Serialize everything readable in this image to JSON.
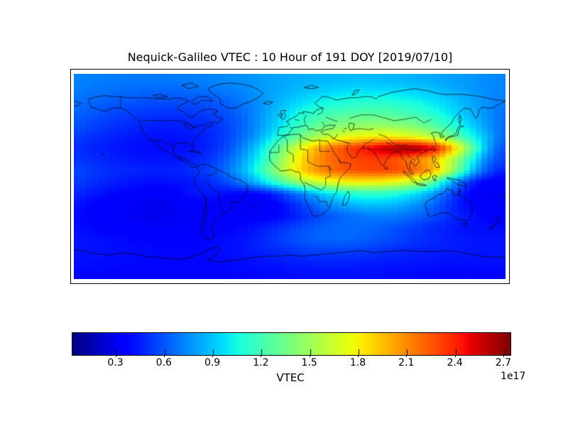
{
  "chart_data": {
    "type": "heatmap",
    "title": "Nequick-Galileo VTEC : 10 Hour of 191 DOY [2019/07/10]",
    "projection": "equirectangular",
    "lon_range": [
      -180,
      180
    ],
    "lat_range": [
      -90,
      90
    ],
    "colormap": "jet",
    "colorbar": {
      "label": "VTEC",
      "offset_label": "1e17",
      "vmin": 0.03,
      "vmax": 2.74,
      "ticks": [
        0.3,
        0.6,
        0.9,
        1.2,
        1.5,
        1.8,
        2.1,
        2.4,
        2.7
      ],
      "orientation": "horizontal"
    },
    "grid": {
      "units": "1e17 el/m^2",
      "lon_start": -175,
      "lon_step": 10,
      "lat_start": 85,
      "lat_step": -10,
      "values": [
        [
          0.72,
          0.71,
          0.7,
          0.7,
          0.69,
          0.69,
          0.69,
          0.69,
          0.7,
          0.7,
          0.71,
          0.72,
          0.73,
          0.75,
          0.76,
          0.78,
          0.8,
          0.81,
          0.83,
          0.84,
          0.85,
          0.86,
          0.86,
          0.87,
          0.87,
          0.86,
          0.86,
          0.85,
          0.84,
          0.83,
          0.81,
          0.79,
          0.78,
          0.76,
          0.74,
          0.73
        ],
        [
          0.7,
          0.68,
          0.67,
          0.66,
          0.65,
          0.64,
          0.64,
          0.64,
          0.64,
          0.65,
          0.66,
          0.67,
          0.69,
          0.71,
          0.74,
          0.77,
          0.8,
          0.83,
          0.86,
          0.89,
          0.91,
          0.93,
          0.95,
          0.96,
          0.96,
          0.96,
          0.95,
          0.94,
          0.92,
          0.9,
          0.87,
          0.84,
          0.8,
          0.77,
          0.74,
          0.72
        ],
        [
          0.66,
          0.64,
          0.62,
          0.6,
          0.59,
          0.58,
          0.57,
          0.57,
          0.57,
          0.57,
          0.58,
          0.6,
          0.62,
          0.66,
          0.7,
          0.75,
          0.81,
          0.87,
          0.93,
          0.98,
          1.02,
          1.05,
          1.08,
          1.09,
          1.1,
          1.1,
          1.09,
          1.07,
          1.04,
          1.0,
          0.96,
          0.91,
          0.85,
          0.8,
          0.75,
          0.7
        ],
        [
          0.62,
          0.6,
          0.57,
          0.55,
          0.53,
          0.52,
          0.51,
          0.5,
          0.5,
          0.51,
          0.52,
          0.54,
          0.57,
          0.62,
          0.68,
          0.76,
          0.85,
          0.94,
          1.03,
          1.1,
          1.16,
          1.2,
          1.23,
          1.25,
          1.26,
          1.26,
          1.24,
          1.21,
          1.17,
          1.12,
          1.05,
          0.98,
          0.9,
          0.82,
          0.75,
          0.68
        ],
        [
          0.58,
          0.55,
          0.52,
          0.5,
          0.48,
          0.46,
          0.45,
          0.44,
          0.44,
          0.45,
          0.46,
          0.49,
          0.53,
          0.59,
          0.67,
          0.77,
          0.88,
          1.0,
          1.12,
          1.22,
          1.3,
          1.36,
          1.41,
          1.44,
          1.46,
          1.46,
          1.44,
          1.41,
          1.36,
          1.29,
          1.2,
          1.1,
          0.99,
          0.88,
          0.77,
          0.67
        ],
        [
          0.52,
          0.49,
          0.47,
          0.45,
          0.43,
          0.42,
          0.41,
          0.41,
          0.41,
          0.42,
          0.44,
          0.47,
          0.52,
          0.6,
          0.7,
          0.82,
          0.97,
          1.13,
          1.29,
          1.43,
          1.55,
          1.64,
          1.71,
          1.76,
          1.79,
          1.8,
          1.79,
          1.76,
          1.7,
          1.61,
          1.49,
          1.34,
          1.17,
          1.0,
          0.84,
          0.67
        ],
        [
          0.48,
          0.46,
          0.44,
          0.42,
          0.41,
          0.4,
          0.39,
          0.39,
          0.4,
          0.41,
          0.43,
          0.47,
          0.54,
          0.64,
          0.78,
          0.95,
          1.16,
          1.4,
          1.64,
          1.86,
          2.04,
          2.18,
          2.28,
          2.38,
          2.48,
          2.58,
          2.66,
          2.71,
          2.7,
          2.6,
          2.38,
          2.02,
          1.6,
          1.18,
          0.84,
          0.6
        ],
        [
          0.5,
          0.48,
          0.46,
          0.44,
          0.43,
          0.42,
          0.41,
          0.41,
          0.42,
          0.44,
          0.47,
          0.52,
          0.6,
          0.71,
          0.86,
          1.04,
          1.26,
          1.52,
          1.76,
          1.96,
          2.1,
          2.2,
          2.26,
          2.3,
          2.32,
          2.32,
          2.28,
          2.2,
          2.12,
          2.02,
          1.85,
          1.6,
          1.28,
          0.96,
          0.7,
          0.55
        ],
        [
          0.55,
          0.52,
          0.5,
          0.48,
          0.47,
          0.46,
          0.45,
          0.45,
          0.46,
          0.48,
          0.51,
          0.56,
          0.64,
          0.76,
          0.92,
          1.12,
          1.35,
          1.58,
          1.8,
          1.98,
          2.1,
          2.18,
          2.24,
          2.27,
          2.29,
          2.3,
          2.29,
          2.26,
          2.2,
          2.08,
          1.86,
          1.52,
          1.14,
          0.8,
          0.58,
          0.46
        ],
        [
          0.52,
          0.49,
          0.46,
          0.44,
          0.42,
          0.41,
          0.4,
          0.4,
          0.41,
          0.42,
          0.45,
          0.49,
          0.55,
          0.64,
          0.76,
          0.91,
          1.08,
          1.26,
          1.43,
          1.57,
          1.67,
          1.74,
          1.78,
          1.8,
          1.8,
          1.78,
          1.74,
          1.68,
          1.58,
          1.42,
          1.1,
          0.82,
          0.58,
          0.42,
          0.35,
          0.33
        ],
        [
          0.46,
          0.43,
          0.4,
          0.38,
          0.36,
          0.34,
          0.33,
          0.33,
          0.36,
          0.4,
          0.42,
          0.42,
          0.4,
          0.38,
          0.36,
          0.38,
          0.44,
          0.54,
          0.66,
          0.78,
          0.89,
          0.98,
          1.05,
          1.1,
          1.12,
          1.12,
          1.09,
          1.04,
          0.96,
          0.85,
          0.7,
          0.55,
          0.42,
          0.34,
          0.3,
          0.3
        ],
        [
          0.4,
          0.37,
          0.35,
          0.33,
          0.31,
          0.3,
          0.29,
          0.29,
          0.31,
          0.34,
          0.36,
          0.36,
          0.34,
          0.31,
          0.29,
          0.29,
          0.33,
          0.4,
          0.49,
          0.58,
          0.67,
          0.75,
          0.81,
          0.86,
          0.88,
          0.88,
          0.86,
          0.82,
          0.76,
          0.68,
          0.58,
          0.48,
          0.4,
          0.35,
          0.32,
          0.31
        ],
        [
          0.38,
          0.36,
          0.34,
          0.32,
          0.31,
          0.3,
          0.29,
          0.29,
          0.3,
          0.31,
          0.32,
          0.33,
          0.33,
          0.32,
          0.32,
          0.33,
          0.35,
          0.39,
          0.44,
          0.5,
          0.55,
          0.6,
          0.64,
          0.67,
          0.69,
          0.7,
          0.69,
          0.67,
          0.64,
          0.59,
          0.54,
          0.48,
          0.43,
          0.4,
          0.37,
          0.36
        ],
        [
          0.4,
          0.38,
          0.36,
          0.35,
          0.34,
          0.33,
          0.32,
          0.32,
          0.32,
          0.33,
          0.34,
          0.35,
          0.36,
          0.38,
          0.4,
          0.43,
          0.47,
          0.51,
          0.55,
          0.59,
          0.62,
          0.64,
          0.65,
          0.65,
          0.64,
          0.62,
          0.59,
          0.56,
          0.52,
          0.49,
          0.46,
          0.43,
          0.41,
          0.4,
          0.39,
          0.39
        ],
        [
          0.42,
          0.41,
          0.4,
          0.39,
          0.38,
          0.37,
          0.36,
          0.36,
          0.36,
          0.36,
          0.37,
          0.38,
          0.39,
          0.41,
          0.43,
          0.46,
          0.5,
          0.54,
          0.58,
          0.61,
          0.63,
          0.64,
          0.64,
          0.63,
          0.61,
          0.59,
          0.56,
          0.53,
          0.5,
          0.48,
          0.46,
          0.44,
          0.43,
          0.42,
          0.42,
          0.42
        ],
        [
          0.42,
          0.41,
          0.41,
          0.4,
          0.4,
          0.39,
          0.39,
          0.38,
          0.38,
          0.38,
          0.38,
          0.39,
          0.4,
          0.41,
          0.43,
          0.45,
          0.47,
          0.49,
          0.51,
          0.53,
          0.54,
          0.54,
          0.54,
          0.53,
          0.52,
          0.5,
          0.49,
          0.47,
          0.46,
          0.45,
          0.44,
          0.43,
          0.43,
          0.42,
          0.42,
          0.42
        ],
        [
          0.4,
          0.4,
          0.39,
          0.39,
          0.39,
          0.38,
          0.38,
          0.38,
          0.38,
          0.38,
          0.38,
          0.38,
          0.39,
          0.39,
          0.4,
          0.41,
          0.42,
          0.43,
          0.44,
          0.45,
          0.46,
          0.46,
          0.46,
          0.45,
          0.45,
          0.44,
          0.43,
          0.43,
          0.42,
          0.42,
          0.41,
          0.41,
          0.41,
          0.4,
          0.4,
          0.4
        ],
        [
          0.38,
          0.38,
          0.38,
          0.37,
          0.37,
          0.37,
          0.37,
          0.37,
          0.37,
          0.37,
          0.37,
          0.37,
          0.37,
          0.38,
          0.38,
          0.38,
          0.39,
          0.39,
          0.4,
          0.4,
          0.4,
          0.4,
          0.4,
          0.4,
          0.4,
          0.4,
          0.39,
          0.39,
          0.39,
          0.38,
          0.38,
          0.38,
          0.38,
          0.38,
          0.38,
          0.38
        ]
      ]
    }
  }
}
